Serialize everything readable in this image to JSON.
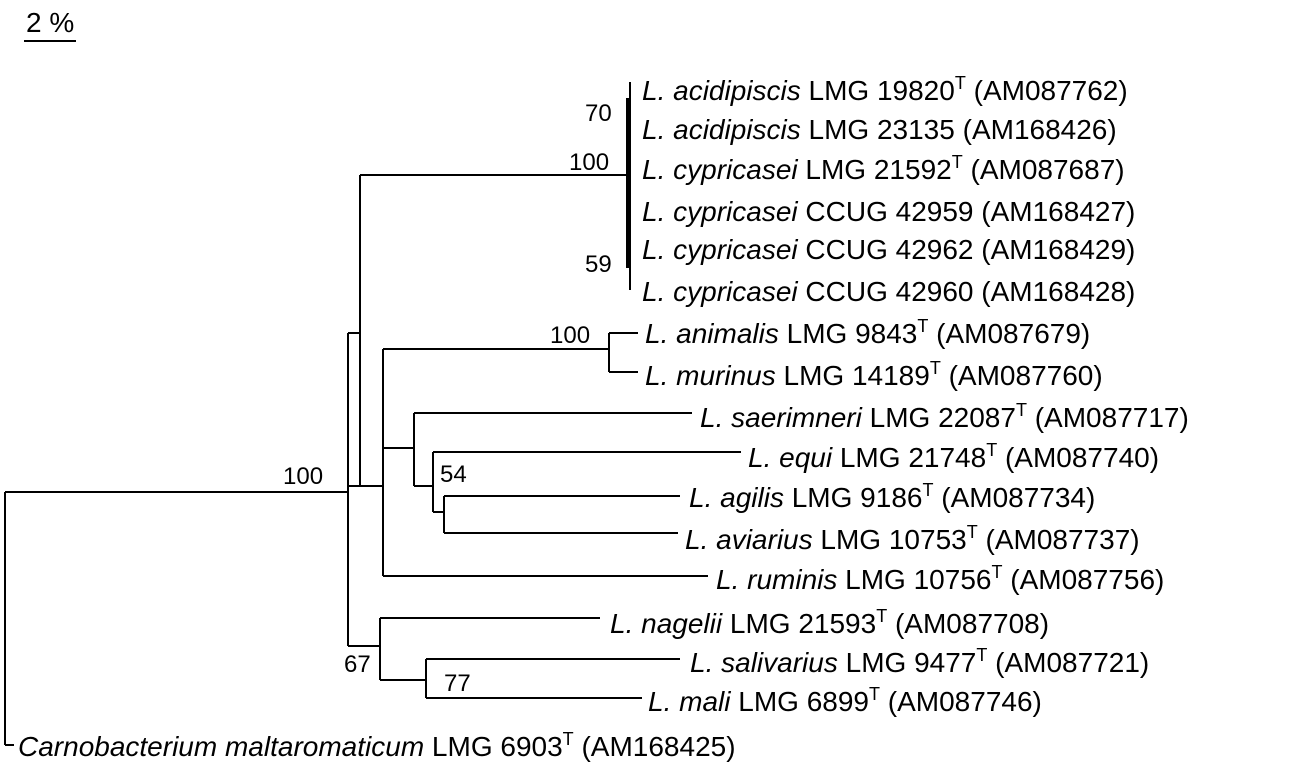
{
  "scale_bar": {
    "label": "2 %"
  },
  "taxa": [
    {
      "genus": "L.",
      "species": "acidipiscis",
      "strain": "LMG 19820",
      "type": true,
      "accession": "(AM087762)"
    },
    {
      "genus": "L.",
      "species": "acidipiscis",
      "strain": "LMG 23135",
      "type": false,
      "accession": "(AM168426)"
    },
    {
      "genus": "L.",
      "species": "cypricasei",
      "strain": "LMG 21592",
      "type": true,
      "accession": "(AM087687)"
    },
    {
      "genus": "L.",
      "species": "cypricasei",
      "strain": "CCUG 42959",
      "type": false,
      "accession": "(AM168427)"
    },
    {
      "genus": "L.",
      "species": "cypricasei",
      "strain": "CCUG 42962",
      "type": false,
      "accession": "(AM168429)"
    },
    {
      "genus": "L.",
      "species": "cypricasei",
      "strain": "CCUG 42960",
      "type": false,
      "accession": "(AM168428)"
    },
    {
      "genus": "L.",
      "species": "animalis",
      "strain": "LMG 9843",
      "type": true,
      "accession": "(AM087679)"
    },
    {
      "genus": "L.",
      "species": "murinus",
      "strain": "LMG 14189",
      "type": true,
      "accession": "(AM087760)"
    },
    {
      "genus": "L.",
      "species": "saerimneri",
      "strain": "LMG 22087",
      "type": true,
      "accession": "(AM087717)"
    },
    {
      "genus": "L.",
      "species": "equi",
      "strain": "LMG 21748",
      "type": true,
      "accession": "(AM087740)"
    },
    {
      "genus": "L.",
      "species": "agilis",
      "strain": "LMG 9186",
      "type": true,
      "accession": "(AM087734)"
    },
    {
      "genus": "L.",
      "species": "aviarius",
      "strain": "LMG 10753",
      "type": true,
      "accession": "(AM087737)"
    },
    {
      "genus": "L.",
      "species": "ruminis",
      "strain": "LMG 10756",
      "type": true,
      "accession": "(AM087756)"
    },
    {
      "genus": "L.",
      "species": "nagelii",
      "strain": "LMG 21593",
      "type": true,
      "accession": "(AM087708)"
    },
    {
      "genus": "L.",
      "species": "salivarius",
      "strain": "LMG 9477",
      "type": true,
      "accession": "(AM087721)"
    },
    {
      "genus": "L.",
      "species": "mali",
      "strain": "LMG 6899",
      "type": true,
      "accession": "(AM087746)"
    },
    {
      "genus": "Carnobacterium",
      "species": "maltaromaticum",
      "strain": "LMG 6903",
      "type": true,
      "accession": "(AM168425)"
    }
  ],
  "type_marker": "T",
  "bootstrap": [
    "70",
    "100",
    "59",
    "100",
    "54",
    "100",
    "67",
    "77"
  ]
}
